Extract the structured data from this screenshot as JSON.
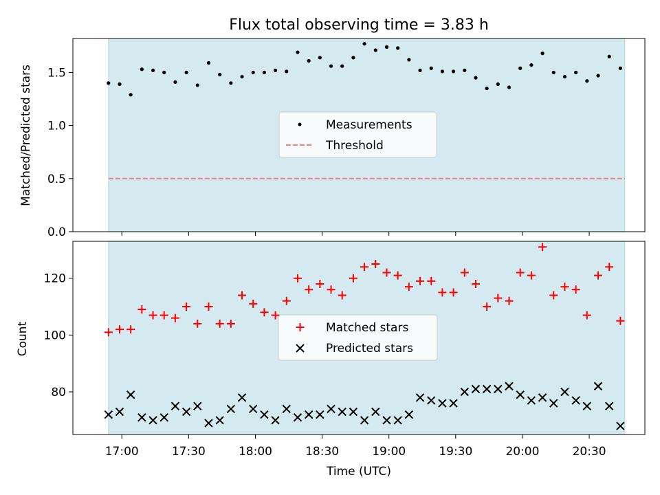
{
  "chart_data": [
    {
      "type": "scatter",
      "title": "Flux total observing time = 3.83 h",
      "xlabel": "",
      "ylabel": "Matched/Predicted stars",
      "ylim": [
        0,
        1.82
      ],
      "yticks": [
        0.0,
        0.5,
        1.0,
        1.5
      ],
      "ytick_labels": [
        "0.0",
        "0.5",
        "1.0",
        "1.5"
      ],
      "shaded_window": [
        "16:54",
        "20:46"
      ],
      "threshold": 0.5,
      "legend": [
        "Measurements",
        "Threshold"
      ],
      "legend_position": "center",
      "series": [
        {
          "name": "Measurements",
          "x": [
            "16:54",
            "16:59",
            "17:04",
            "17:09",
            "17:14",
            "17:19",
            "17:24",
            "17:29",
            "17:34",
            "17:39",
            "17:44",
            "17:49",
            "17:54",
            "17:59",
            "18:04",
            "18:09",
            "18:14",
            "18:19",
            "18:24",
            "18:29",
            "18:34",
            "18:39",
            "18:44",
            "18:49",
            "18:54",
            "18:59",
            "19:04",
            "19:09",
            "19:14",
            "19:19",
            "19:24",
            "19:29",
            "19:34",
            "19:39",
            "19:44",
            "19:49",
            "19:54",
            "19:59",
            "20:04",
            "20:09",
            "20:14",
            "20:19",
            "20:24",
            "20:29",
            "20:34",
            "20:39",
            "20:44"
          ],
          "values": [
            1.4,
            1.39,
            1.29,
            1.53,
            1.52,
            1.5,
            1.41,
            1.5,
            1.38,
            1.59,
            1.48,
            1.4,
            1.46,
            1.5,
            1.5,
            1.52,
            1.51,
            1.69,
            1.61,
            1.64,
            1.56,
            1.56,
            1.64,
            1.77,
            1.71,
            1.74,
            1.73,
            1.62,
            1.52,
            1.54,
            1.51,
            1.51,
            1.52,
            1.45,
            1.35,
            1.39,
            1.36,
            1.54,
            1.57,
            1.68,
            1.5,
            1.46,
            1.5,
            1.42,
            1.47,
            1.65,
            1.54
          ]
        },
        {
          "name": "Threshold",
          "x": [
            "16:54",
            "20:46"
          ],
          "values": [
            0.5,
            0.5
          ]
        }
      ]
    },
    {
      "type": "scatter",
      "xlabel": "Time (UTC)",
      "ylabel": "Count",
      "ylim": [
        65,
        133
      ],
      "yticks": [
        80,
        100,
        120
      ],
      "ytick_labels": [
        "80",
        "100",
        "120"
      ],
      "xticks": [
        "17:00",
        "17:30",
        "18:00",
        "18:30",
        "19:00",
        "19:30",
        "20:00",
        "20:30"
      ],
      "shaded_window": [
        "16:54",
        "20:46"
      ],
      "legend": [
        "Matched stars",
        "Predicted stars"
      ],
      "legend_position": "center",
      "series": [
        {
          "name": "Matched stars",
          "x": [
            "16:54",
            "16:59",
            "17:04",
            "17:09",
            "17:14",
            "17:19",
            "17:24",
            "17:29",
            "17:34",
            "17:39",
            "17:44",
            "17:49",
            "17:54",
            "17:59",
            "18:04",
            "18:09",
            "18:14",
            "18:19",
            "18:24",
            "18:29",
            "18:34",
            "18:39",
            "18:44",
            "18:49",
            "18:54",
            "18:59",
            "19:04",
            "19:09",
            "19:14",
            "19:19",
            "19:24",
            "19:29",
            "19:34",
            "19:39",
            "19:44",
            "19:49",
            "19:54",
            "19:59",
            "20:04",
            "20:09",
            "20:14",
            "20:19",
            "20:24",
            "20:29",
            "20:34",
            "20:39",
            "20:44"
          ],
          "values": [
            101,
            102,
            102,
            109,
            107,
            107,
            106,
            110,
            104,
            110,
            104,
            104,
            114,
            111,
            108,
            107,
            112,
            120,
            116,
            118,
            116,
            114,
            120,
            124,
            125,
            122,
            121,
            117,
            119,
            119,
            115,
            115,
            122,
            118,
            110,
            113,
            112,
            122,
            121,
            131,
            114,
            117,
            116,
            107,
            121,
            124,
            105
          ]
        },
        {
          "name": "Predicted stars",
          "x": [
            "16:54",
            "16:59",
            "17:04",
            "17:09",
            "17:14",
            "17:19",
            "17:24",
            "17:29",
            "17:34",
            "17:39",
            "17:44",
            "17:49",
            "17:54",
            "17:59",
            "18:04",
            "18:09",
            "18:14",
            "18:19",
            "18:24",
            "18:29",
            "18:34",
            "18:39",
            "18:44",
            "18:49",
            "18:54",
            "18:59",
            "19:04",
            "19:09",
            "19:14",
            "19:19",
            "19:24",
            "19:29",
            "19:34",
            "19:39",
            "19:44",
            "19:49",
            "19:54",
            "19:59",
            "20:04",
            "20:09",
            "20:14",
            "20:19",
            "20:24",
            "20:29",
            "20:34",
            "20:39",
            "20:44"
          ],
          "values": [
            72,
            73,
            79,
            71,
            70,
            71,
            75,
            73,
            75,
            69,
            70,
            74,
            78,
            74,
            72,
            70,
            74,
            71,
            72,
            72,
            74,
            73,
            73,
            70,
            73,
            70,
            70,
            72,
            78,
            77,
            76,
            76,
            80,
            81,
            81,
            81,
            82,
            79,
            77,
            78,
            76,
            80,
            77,
            75,
            82,
            75,
            68
          ]
        }
      ]
    }
  ],
  "colors": {
    "shade": "#d4eaf0",
    "threshold": "#f08080",
    "matched": "#ff0000",
    "predicted": "#000000",
    "measurement": "#000000"
  }
}
